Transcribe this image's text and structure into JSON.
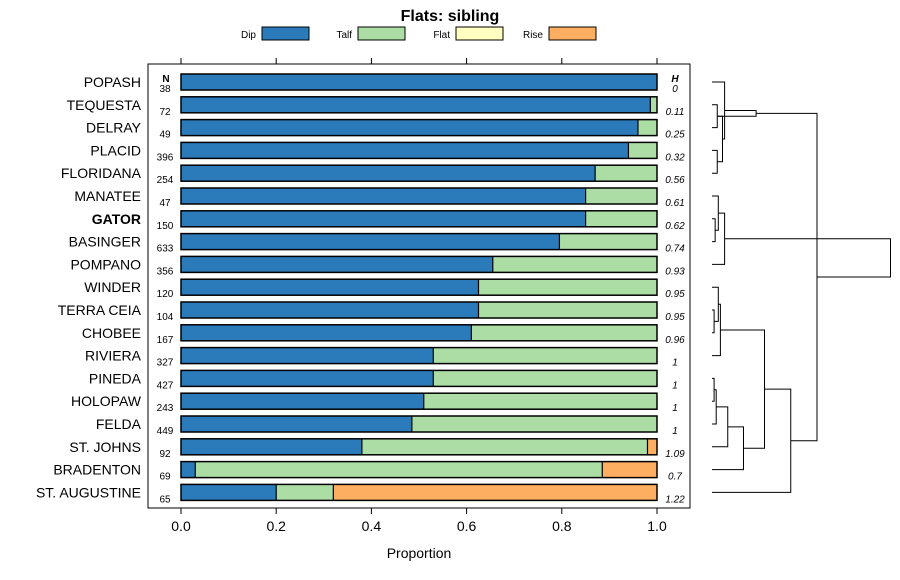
{
  "chart_data": {
    "type": "bar",
    "stacked": true,
    "orientation": "horizontal",
    "title": "Flats: sibling",
    "xlabel": "Proportion",
    "xlim": [
      0,
      1
    ],
    "xticks": [
      "0.0",
      "0.2",
      "0.4",
      "0.6",
      "0.8",
      "1.0"
    ],
    "xtick_values": [
      0,
      0.2,
      0.4,
      0.6,
      0.8,
      1.0
    ],
    "n_header": "N",
    "h_header": "H",
    "legend": [
      {
        "name": "Dip",
        "color": "#2b7bba"
      },
      {
        "name": "Talf",
        "color": "#abdda4"
      },
      {
        "name": "Flat",
        "color": "#ffffbf"
      },
      {
        "name": "Rise",
        "color": "#fdae61"
      }
    ],
    "categories": [
      "POPASH",
      "TEQUESTA",
      "DELRAY",
      "PLACID",
      "FLORIDANA",
      "MANATEE",
      "GATOR",
      "BASINGER",
      "POMPANO",
      "WINDER",
      "TERRA CEIA",
      "CHOBEE",
      "RIVIERA",
      "PINEDA",
      "HOLOPAW",
      "FELDA",
      "ST. JOHNS",
      "BRADENTON",
      "ST. AUGUSTINE"
    ],
    "bold_category": "GATOR",
    "n_values": [
      "38",
      "72",
      "49",
      "396",
      "254",
      "47",
      "150",
      "633",
      "356",
      "120",
      "104",
      "167",
      "327",
      "427",
      "243",
      "449",
      "92",
      "69",
      "65"
    ],
    "h_values": [
      "0",
      "0.11",
      "0.25",
      "0.32",
      "0.56",
      "0.61",
      "0.62",
      "0.74",
      "0.93",
      "0.95",
      "0.95",
      "0.96",
      "1",
      "1",
      "1",
      "1",
      "1.09",
      "0.7",
      "1.22"
    ],
    "series": [
      {
        "name": "Dip",
        "values": [
          1.0,
          0.986,
          0.96,
          0.94,
          0.87,
          0.85,
          0.85,
          0.795,
          0.655,
          0.625,
          0.625,
          0.61,
          0.53,
          0.53,
          0.51,
          0.485,
          0.38,
          0.03,
          0.2
        ]
      },
      {
        "name": "Talf",
        "values": [
          0.0,
          0.014,
          0.04,
          0.06,
          0.13,
          0.15,
          0.15,
          0.205,
          0.345,
          0.375,
          0.375,
          0.39,
          0.47,
          0.47,
          0.49,
          0.515,
          0.6,
          0.855,
          0.12
        ]
      },
      {
        "name": "Flat",
        "values": [
          0,
          0,
          0,
          0,
          0,
          0,
          0,
          0,
          0,
          0,
          0,
          0,
          0,
          0,
          0,
          0,
          0,
          0,
          0
        ]
      },
      {
        "name": "Rise",
        "values": [
          0,
          0,
          0,
          0,
          0,
          0,
          0,
          0,
          0,
          0,
          0,
          0,
          0,
          0,
          0,
          0,
          0.02,
          0.115,
          0.68
        ]
      }
    ],
    "dendrogram": {
      "leaves_in_row_order": true,
      "merges": [
        [
          1,
          2,
          0.05
        ],
        [
          3,
          4,
          0.05
        ],
        [
          -1,
          -2,
          0.1
        ],
        [
          0,
          -3,
          0.12
        ],
        [
          -4,
          -1,
          0.42
        ],
        [
          6,
          7,
          0.03
        ],
        [
          5,
          -6,
          0.06
        ],
        [
          -7,
          8,
          0.12
        ],
        [
          10,
          11,
          0.02
        ],
        [
          9,
          -9,
          0.06
        ],
        [
          -10,
          12,
          0.08
        ],
        [
          13,
          14,
          0.02
        ],
        [
          -12,
          15,
          0.04
        ],
        [
          -13,
          16,
          0.15
        ],
        [
          -14,
          17,
          0.3
        ],
        [
          -11,
          -15,
          0.5
        ],
        [
          -16,
          18,
          0.75
        ],
        [
          -5,
          -17,
          1.0
        ],
        [
          -8,
          -18,
          1.7
        ]
      ]
    }
  }
}
